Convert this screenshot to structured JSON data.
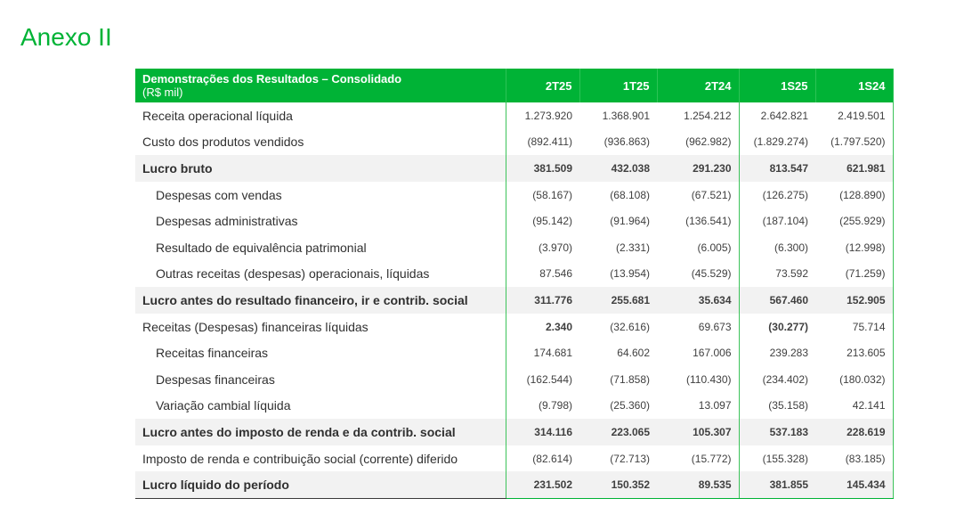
{
  "page_title": "Anexo II",
  "table": {
    "header_label_line1": "Demonstrações dos Resultados – Consolidado",
    "header_label_line2": "(R$ mil)",
    "columns": [
      "2T25",
      "1T25",
      "2T24",
      "1S25",
      "1S24"
    ],
    "rows": [
      {
        "label": "Receita operacional líquida",
        "values": [
          "1.273.920",
          "1.368.901",
          "1.254.212",
          "2.642.821",
          "2.419.501"
        ],
        "bold": false,
        "indent": false,
        "shaded": false
      },
      {
        "label": "Custo dos produtos vendidos",
        "values": [
          "(892.411)",
          "(936.863)",
          "(962.982)",
          "(1.829.274)",
          "(1.797.520)"
        ],
        "bold": false,
        "indent": false,
        "shaded": false
      },
      {
        "label": "Lucro bruto",
        "values": [
          "381.509",
          "432.038",
          "291.230",
          "813.547",
          "621.981"
        ],
        "bold": true,
        "indent": false,
        "shaded": true
      },
      {
        "label": "Despesas com vendas",
        "values": [
          "(58.167)",
          "(68.108)",
          "(67.521)",
          "(126.275)",
          "(128.890)"
        ],
        "bold": false,
        "indent": true,
        "shaded": false
      },
      {
        "label": "Despesas administrativas",
        "values": [
          "(95.142)",
          "(91.964)",
          "(136.541)",
          "(187.104)",
          "(255.929)"
        ],
        "bold": false,
        "indent": true,
        "shaded": false
      },
      {
        "label": "Resultado de equivalência patrimonial",
        "values": [
          "(3.970)",
          "(2.331)",
          "(6.005)",
          "(6.300)",
          "(12.998)"
        ],
        "bold": false,
        "indent": true,
        "shaded": false
      },
      {
        "label": "Outras receitas (despesas) operacionais, líquidas",
        "values": [
          "87.546",
          "(13.954)",
          "(45.529)",
          "73.592",
          "(71.259)"
        ],
        "bold": false,
        "indent": true,
        "shaded": false
      },
      {
        "label": "Lucro antes do resultado financeiro, ir e contrib. social",
        "values": [
          "311.776",
          "255.681",
          "35.634",
          "567.460",
          "152.905"
        ],
        "bold": true,
        "indent": false,
        "shaded": true
      },
      {
        "label": "Receitas (Despesas) financeiras líquidas",
        "values": [
          "2.340",
          "(32.616)",
          "69.673",
          "(30.277)",
          "75.714"
        ],
        "bold": false,
        "indent": false,
        "shaded": false,
        "bold_cells": [
          0,
          3
        ]
      },
      {
        "label": "Receitas financeiras",
        "values": [
          "174.681",
          "64.602",
          "167.006",
          "239.283",
          "213.605"
        ],
        "bold": false,
        "indent": true,
        "shaded": false
      },
      {
        "label": "Despesas financeiras",
        "values": [
          "(162.544)",
          "(71.858)",
          "(110.430)",
          "(234.402)",
          "(180.032)"
        ],
        "bold": false,
        "indent": true,
        "shaded": false
      },
      {
        "label": "Variação cambial líquida",
        "values": [
          "(9.798)",
          "(25.360)",
          "13.097",
          "(35.158)",
          "42.141"
        ],
        "bold": false,
        "indent": true,
        "shaded": false
      },
      {
        "label": "Lucro antes do imposto de renda e da contrib. social",
        "values": [
          "314.116",
          "223.065",
          "105.307",
          "537.183",
          "228.619"
        ],
        "bold": true,
        "indent": false,
        "shaded": true
      },
      {
        "label": "Imposto de renda e contribuição social (corrente) diferido",
        "values": [
          "(82.614)",
          "(72.713)",
          "(15.772)",
          "(155.328)",
          "(83.185)"
        ],
        "bold": false,
        "indent": false,
        "shaded": false
      },
      {
        "label": "Lucro líquido do período",
        "values": [
          "231.502",
          "150.352",
          "89.535",
          "381.855",
          "145.434"
        ],
        "bold": true,
        "indent": false,
        "shaded": true
      }
    ]
  },
  "colors": {
    "accent": "#00b336",
    "shade": "#f2f2f2"
  }
}
